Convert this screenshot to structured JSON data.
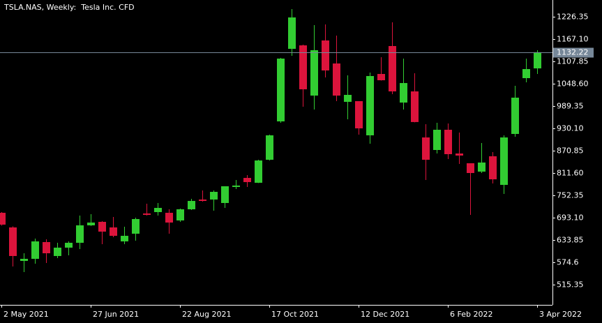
{
  "chart_data": {
    "type": "candlestick",
    "title": "TSLA.NAS, Weekly:  Tesla Inc. CFD",
    "categories": [
      "2 May 2021",
      null,
      null,
      null,
      null,
      null,
      null,
      null,
      "27 Jun 2021",
      null,
      null,
      null,
      null,
      null,
      null,
      null,
      "22 Aug 2021",
      null,
      null,
      null,
      null,
      null,
      null,
      null,
      "17 Oct 2021",
      null,
      null,
      null,
      null,
      null,
      null,
      null,
      "12 Dec 2021",
      null,
      null,
      null,
      null,
      null,
      null,
      null,
      "6 Feb 2022",
      null,
      null,
      null,
      null,
      null,
      null,
      null,
      "3 Apr 2022"
    ],
    "series": [
      {
        "open": [
          706.0,
          667.2,
          578.3,
          583.8,
          628.3,
          591.3,
          613.5,
          626.4,
          672.7,
          682.0,
          667.2,
          630.1,
          650.5,
          704.2,
          707.9,
          706.0,
          685.7,
          715.3,
          741.2,
          741.2,
          732.0,
          774.6,
          798.6,
          785.7,
          846.8,
          948.6,
          1141.2,
          1150.4,
          1017.1,
          1163.4,
          1102.3,
          1000.5,
          1002.3,
          911.6,
          1074.5,
          1148.6,
          998.6,
          1028.2,
          906.0,
          872.7,
          926.4,
          863.4,
          837.5,
          815.3,
          856.0,
          780.1,
          915.3,
          1063.4,
          1089.3
        ],
        "high": [
          708.0,
          670.0,
          598.6,
          637.5,
          635.7,
          626.4,
          630.1,
          698.6,
          702.3,
          683.8,
          694.9,
          669.0,
          693.1,
          730.1,
          732.0,
          715.3,
          717.2,
          743.1,
          765.3,
          765.3,
          776.4,
          793.1,
          806.0,
          846.8,
          913.4,
          1117.1,
          1246.7,
          1152.3,
          1204.1,
          1206.0,
          1176.4,
          1070.8,
          1002.3,
          1078.2,
          1119.0,
          1211.5,
          1115.3,
          1076.4,
          941.2,
          944.9,
          943.0,
          919.0,
          837.5,
          891.2,
          867.1,
          911.6,
          1043.0,
          1115.3,
          1137.5
        ],
        "low": [
          672.0,
          563.5,
          548.6,
          570.9,
          572.7,
          585.7,
          593.1,
          609.8,
          671.0,
          622.7,
          641.2,
          622.7,
          631.9,
          698.6,
          698.6,
          650.5,
          682.0,
          713.4,
          735.7,
          711.6,
          719.0,
          769.0,
          774.6,
          785.0,
          844.9,
          944.9,
          1122.7,
          987.5,
          980.1,
          1065.3,
          1002.3,
          954.2,
          913.4,
          889.4,
          1057.0,
          1020.8,
          980.1,
          946.0,
          793.1,
          863.4,
          848.6,
          835.6,
          700.5,
          811.6,
          783.8,
          756.0,
          907.9,
          1052.3,
          1074.5
        ],
        "close": [
          674.6,
          591.3,
          583.8,
          630.1,
          598.6,
          613.5,
          626.4,
          672.7,
          680.1,
          656.0,
          644.9,
          644.9,
          689.4,
          700.5,
          719.0,
          680.1,
          715.3,
          737.5,
          737.5,
          761.6,
          776.4,
          778.3,
          787.5,
          844.9,
          911.6,
          1115.3,
          1224.5,
          1033.8,
          1137.5,
          1083.8,
          1017.1,
          1019.0,
          930.1,
          1069.0,
          1057.8,
          1028.2,
          1050.4,
          946.9,
          846.8,
          926.4,
          861.6,
          857.9,
          811.6,
          839.4,
          794.9,
          906.0,
          1011.6,
          1087.5,
          1132.22
        ]
      }
    ],
    "up_color": "#32cd32",
    "down_color": "#dc143c",
    "last_price": 1132.22,
    "ylim": [
      461.65,
      1270.79
    ],
    "yticks": [
      515.35,
      574.6,
      {
        "value": 633.85,
        "label": "633.85"
      },
      {
        "value": 693.1,
        "label": "693.10"
      },
      752.35,
      {
        "value": 811.6,
        "label": "811.60"
      },
      870.85,
      {
        "value": 930.1,
        "label": "930.10"
      },
      989.35,
      {
        "value": 1048.6,
        "label": "1048.60"
      },
      1107.85,
      {
        "value": 1167.1,
        "label": "1167.10"
      },
      1226.35
    ],
    "grid": false
  }
}
